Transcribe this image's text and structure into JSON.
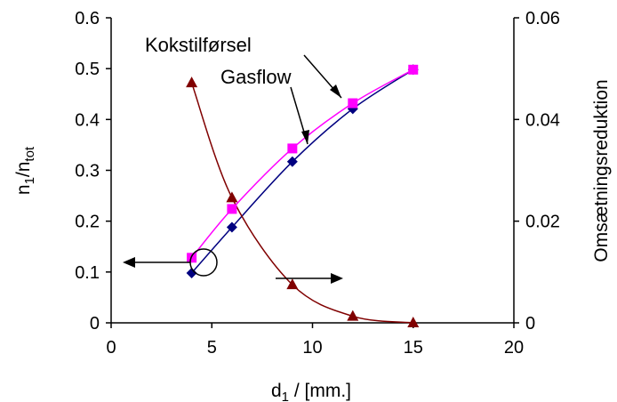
{
  "chart_data": {
    "type": "line",
    "xlabel": "d₁ / [mm.]",
    "ylabel": "n₁/nₜₒₜ",
    "y2label": "Omsætningsreduktion",
    "xlim": [
      0,
      20
    ],
    "ylim": [
      0,
      0.6
    ],
    "y2lim": [
      0,
      0.06
    ],
    "xticks": [
      "0",
      "5",
      "10",
      "15",
      "20"
    ],
    "yticks": [
      "0",
      "0.1",
      "0.2",
      "0.3",
      "0.4",
      "0.5",
      "0.6"
    ],
    "y2ticks": [
      "0",
      "0.02",
      "0.04",
      "0.06"
    ],
    "grid": false,
    "series": [
      {
        "name": "Gasflow",
        "axis": "left",
        "color": "#000080",
        "marker": "diamond",
        "x": [
          4,
          6,
          9,
          12,
          15
        ],
        "y": [
          0.098,
          0.188,
          0.317,
          0.421,
          0.498
        ]
      },
      {
        "name": "Kokstilførsel",
        "axis": "left",
        "color": "#ff00ff",
        "marker": "square",
        "x": [
          4,
          6,
          9,
          12,
          15
        ],
        "y": [
          0.128,
          0.224,
          0.343,
          0.432,
          0.498
        ]
      },
      {
        "axis": "right",
        "color": "#800000",
        "marker": "triangle",
        "x": [
          4,
          6,
          9,
          12,
          15
        ],
        "y": [
          0.0472,
          0.0246,
          0.0075,
          0.0013,
          0.0
        ]
      }
    ]
  }
}
